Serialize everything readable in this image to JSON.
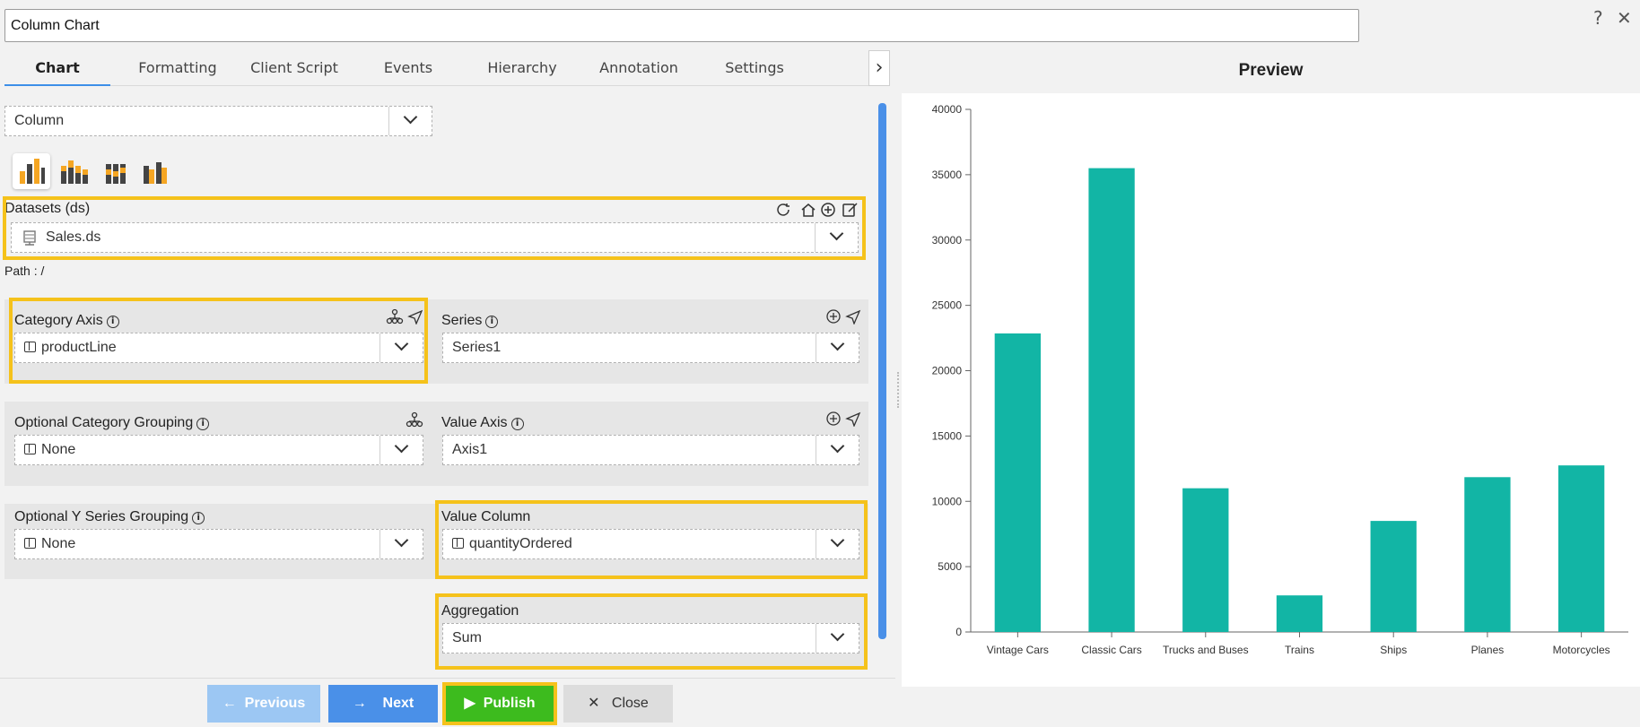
{
  "window": {
    "title": "Column Chart",
    "help": "?",
    "close": "✕"
  },
  "tabs": [
    "Chart",
    "Formatting",
    "Client Script",
    "Events",
    "Hierarchy",
    "Annotation",
    "Settings"
  ],
  "chart_type": {
    "value": "Column"
  },
  "datasets": {
    "label": "Datasets (ds)",
    "value": "Sales.ds",
    "path": "Path : /"
  },
  "category_axis": {
    "label": "Category Axis",
    "value": "productLine"
  },
  "series": {
    "label": "Series",
    "value": "Series1"
  },
  "optional_category_grouping": {
    "label": "Optional Category Grouping",
    "value": "None"
  },
  "value_axis": {
    "label": "Value Axis",
    "value": "Axis1"
  },
  "optional_y_series_grouping": {
    "label": "Optional Y Series Grouping",
    "value": "None"
  },
  "value_column": {
    "label": "Value Column",
    "value": "quantityOrdered"
  },
  "aggregation": {
    "label": "Aggregation",
    "value": "Sum"
  },
  "buttons": {
    "previous": "Previous",
    "next": "Next",
    "publish": "Publish",
    "close": "Close"
  },
  "preview": {
    "title": "Preview"
  },
  "colors": {
    "bar": "#12b5a5",
    "highlight": "#f5c21b",
    "publish": "#3dbb1e",
    "next": "#4a90e8",
    "previous": "#9cc7f3"
  },
  "chart_data": {
    "type": "bar",
    "categories": [
      "Vintage Cars",
      "Classic Cars",
      "Trucks and Buses",
      "Trains",
      "Ships",
      "Planes",
      "Motorcycles"
    ],
    "values": [
      22850,
      35500,
      11000,
      2800,
      8500,
      11850,
      12750
    ],
    "ylim": [
      0,
      40000
    ],
    "yticks": [
      0,
      5000,
      10000,
      15000,
      20000,
      25000,
      30000,
      35000,
      40000
    ],
    "grid": false
  }
}
